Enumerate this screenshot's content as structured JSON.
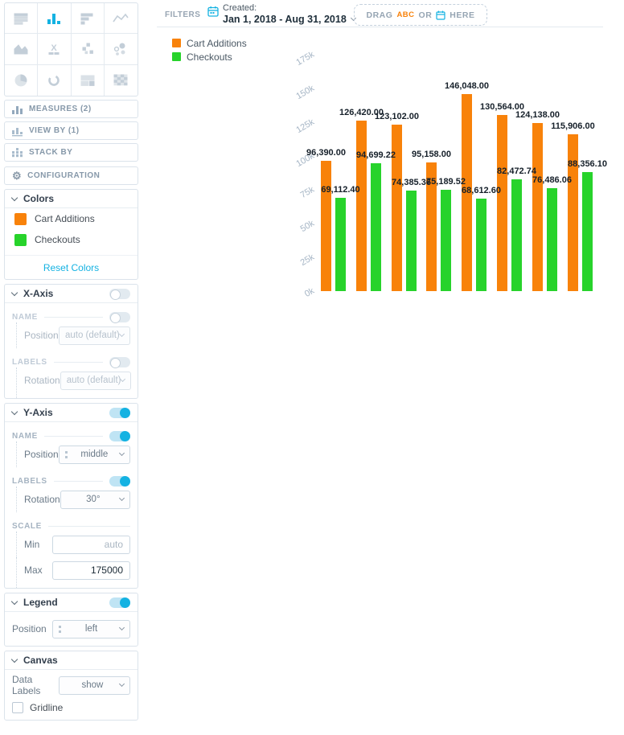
{
  "colors": {
    "accent": "#14b2e2",
    "orange": "#f8820a",
    "green": "#27d32b"
  },
  "vis_picker": {
    "items": [
      {
        "name": "table"
      },
      {
        "name": "column-chart",
        "selected": true
      },
      {
        "name": "bar-chart"
      },
      {
        "name": "line-chart"
      },
      {
        "name": "area-chart"
      },
      {
        "name": "headline"
      },
      {
        "name": "scatter-plot"
      },
      {
        "name": "bubble-chart"
      },
      {
        "name": "pie-chart"
      },
      {
        "name": "donut-chart"
      },
      {
        "name": "treemap"
      },
      {
        "name": "heatmap"
      }
    ]
  },
  "buckets": {
    "measures": "MEASURES (2)",
    "view_by": "VIEW BY (1)",
    "stack_by": "STACK BY"
  },
  "config": {
    "header": "CONFIGURATION",
    "colors": {
      "title": "Colors",
      "items": [
        {
          "label": "Cart Additions",
          "color": "#f8820a"
        },
        {
          "label": "Checkouts",
          "color": "#27d32b"
        }
      ],
      "reset": "Reset Colors"
    },
    "x_axis": {
      "title": "X-Axis",
      "enabled": false,
      "name": "NAME",
      "position_label": "Position",
      "position_value": "auto (default)",
      "labels": "LABELS",
      "rotation_label": "Rotation",
      "rotation_value": "auto (default)"
    },
    "y_axis": {
      "title": "Y-Axis",
      "enabled": true,
      "name": "NAME",
      "position_label": "Position",
      "position_value": "middle",
      "labels": "LABELS",
      "rotation_label": "Rotation",
      "rotation_value": "30°",
      "scale": "SCALE",
      "min_label": "Min",
      "min_placeholder": "auto",
      "max_label": "Max",
      "max_value": "175000"
    },
    "legend": {
      "title": "Legend",
      "enabled": true,
      "position_label": "Position",
      "position_value": "left"
    },
    "canvas": {
      "title": "Canvas",
      "data_labels_label": "Data Labels",
      "data_labels_value": "show",
      "gridline_label": "Gridline",
      "gridline_checked": false
    }
  },
  "filters": {
    "label": "FILTERS",
    "created_label": "Created:",
    "created_value": "Jan 1, 2018 - Aug 31, 2018",
    "dropzone": {
      "drag": "DRAG",
      "abc": "ABC",
      "or": "OR",
      "here": "HERE"
    }
  },
  "chart_data": {
    "type": "bar",
    "categories_shown": false,
    "ylim": [
      0,
      175000
    ],
    "yticks": [
      "0k",
      "25k",
      "50k",
      "75k",
      "100k",
      "125k",
      "150k",
      "175k"
    ],
    "legend_position": "left",
    "gridline": false,
    "data_labels": "show",
    "series": [
      {
        "name": "Cart Additions",
        "color": "#f8820a",
        "values": [
          96390,
          126420,
          123102,
          95158,
          146048,
          130564,
          124138,
          115906
        ],
        "labels": [
          "96,390.00",
          "126,420.00",
          "123,102.00",
          "95,158.00",
          "146,048.00",
          "130,564.00",
          "124,138.00",
          "115,906.00"
        ]
      },
      {
        "name": "Checkouts",
        "color": "#27d32b",
        "values": [
          69112.4,
          94699.22,
          74385.36,
          75189.52,
          68612.6,
          82472.74,
          76486.06,
          88356.1
        ],
        "labels": [
          "69,112.40",
          "94,699.22",
          "74,385.36",
          "75,189.52",
          "68,612.60",
          "82,472.74",
          "76,486.06",
          "88,356.10"
        ]
      }
    ]
  }
}
